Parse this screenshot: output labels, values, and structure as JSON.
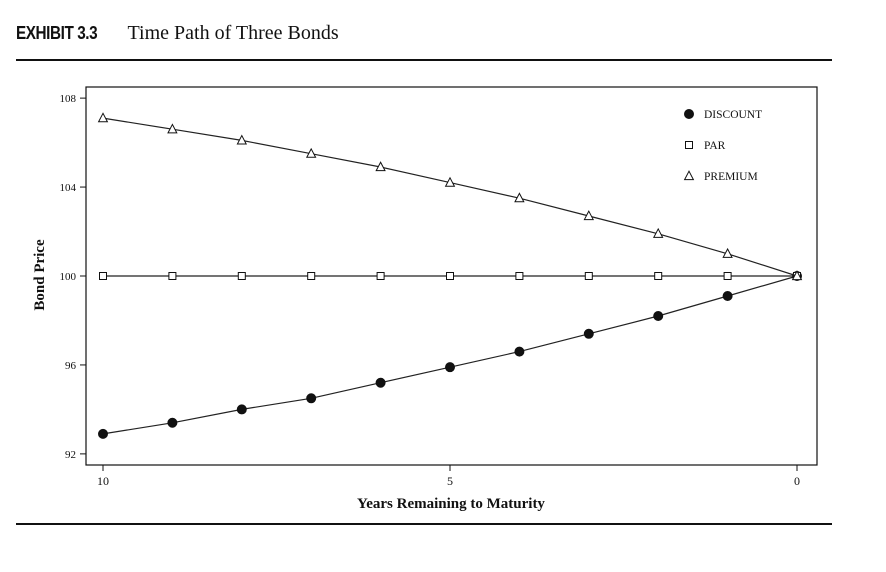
{
  "header": {
    "exhibit_label": "EXHIBIT 3.3",
    "title": "Time Path of Three Bonds"
  },
  "chart_data": {
    "type": "line",
    "xlabel": "Years Remaining to Maturity",
    "ylabel": "Bond Price",
    "xlim": [
      10,
      0
    ],
    "ylim": [
      91.5,
      108.5
    ],
    "x_ticks": [
      10,
      5,
      0
    ],
    "y_ticks": [
      92,
      96,
      100,
      104,
      108
    ],
    "legend_position": "top-right",
    "x": [
      10,
      9,
      8,
      7,
      6,
      5,
      4,
      3,
      2,
      1,
      0
    ],
    "series": [
      {
        "name": "DISCOUNT",
        "marker": "filled-circle",
        "values": [
          92.9,
          93.4,
          94.0,
          94.5,
          95.2,
          95.9,
          96.6,
          97.4,
          98.2,
          99.1,
          100.0
        ]
      },
      {
        "name": "PAR",
        "marker": "open-square",
        "values": [
          100,
          100,
          100,
          100,
          100,
          100,
          100,
          100,
          100,
          100,
          100
        ]
      },
      {
        "name": "PREMIUM",
        "marker": "open-triangle",
        "values": [
          107.1,
          106.6,
          106.1,
          105.5,
          104.9,
          104.2,
          103.5,
          102.7,
          101.9,
          101.0,
          100.0
        ]
      }
    ]
  }
}
